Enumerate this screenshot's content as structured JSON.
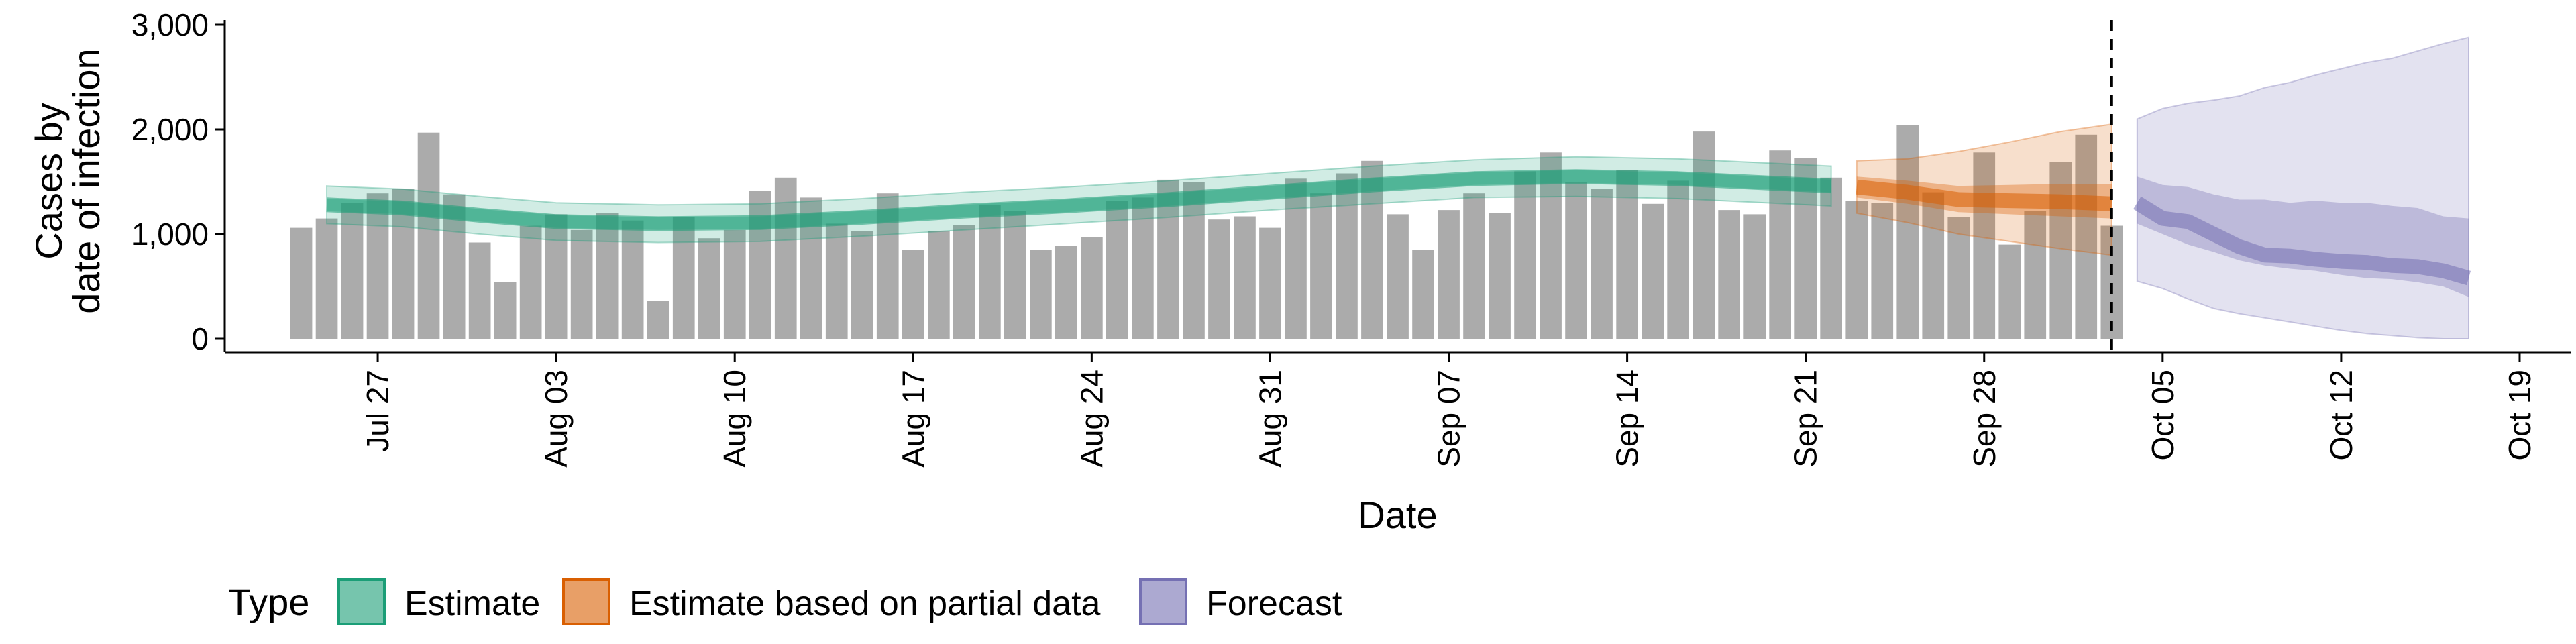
{
  "chart_data": {
    "type": "bar",
    "xlabel": "Date",
    "ylabel_lines": [
      "Cases by",
      "date of infection"
    ],
    "ylim": [
      0,
      3000
    ],
    "y_ticks": [
      0,
      1000,
      2000,
      3000
    ],
    "y_tick_labels": [
      "0",
      "1,000",
      "2,000",
      "3,000"
    ],
    "x_range": [
      "2020-07-21",
      "2020-10-21"
    ],
    "x_ticks": [
      "2020-07-27",
      "2020-08-03",
      "2020-08-10",
      "2020-08-17",
      "2020-08-24",
      "2020-08-31",
      "2020-09-07",
      "2020-09-14",
      "2020-09-21",
      "2020-09-28",
      "2020-10-05",
      "2020-10-12",
      "2020-10-19"
    ],
    "x_tick_labels": [
      "Jul 27",
      "Aug 03",
      "Aug 10",
      "Aug 17",
      "Aug 24",
      "Aug 31",
      "Sep 07",
      "Sep 14",
      "Sep 21",
      "Sep 28",
      "Oct 05",
      "Oct 12",
      "Oct 19"
    ],
    "grid": false,
    "legend_position": "bottom-left",
    "legend_title": "Type",
    "legend_items": [
      {
        "label": "Estimate",
        "color": "#1b9e77"
      },
      {
        "label": "Estimate based on partial data",
        "color": "#d95f02"
      },
      {
        "label": "Forecast",
        "color": "#7570b3"
      }
    ],
    "vline_date": "2020-10-03",
    "bar_color": "#a6a6a6",
    "bars": {
      "start_date": "2020-07-24",
      "values": [
        1060,
        1150,
        1300,
        1390,
        1430,
        1970,
        1380,
        920,
        540,
        1080,
        1190,
        1040,
        1200,
        1130,
        360,
        1160,
        960,
        1040,
        1410,
        1540,
        1350,
        1100,
        1030,
        1390,
        850,
        1030,
        1090,
        1280,
        1220,
        850,
        890,
        970,
        1320,
        1350,
        1520,
        1500,
        1140,
        1170,
        1060,
        1530,
        1390,
        1580,
        1700,
        1190,
        850,
        1230,
        1390,
        1200,
        1600,
        1780,
        1500,
        1430,
        1610,
        1290,
        1510,
        1980,
        1230,
        1190,
        1800,
        1730,
        1540,
        1320,
        1300,
        2040,
        1400,
        1160,
        1780,
        900,
        1220,
        1690,
        1950,
        1080
      ]
    },
    "series": [
      {
        "name": "Estimate",
        "color": "#1b9e77",
        "dates": [
          "2020-07-25",
          "2020-07-28",
          "2020-07-31",
          "2020-08-03",
          "2020-08-07",
          "2020-08-11",
          "2020-08-15",
          "2020-08-19",
          "2020-08-23",
          "2020-08-27",
          "2020-08-31",
          "2020-09-04",
          "2020-09-08",
          "2020-09-12",
          "2020-09-16",
          "2020-09-22"
        ],
        "median": [
          1280,
          1250,
          1180,
          1120,
          1100,
          1110,
          1160,
          1220,
          1270,
          1330,
          1400,
          1470,
          1530,
          1550,
          1530,
          1460
        ],
        "lower50": [
          1220,
          1190,
          1120,
          1060,
          1040,
          1050,
          1100,
          1160,
          1210,
          1270,
          1340,
          1410,
          1470,
          1490,
          1470,
          1400
        ],
        "upper50": [
          1340,
          1310,
          1240,
          1180,
          1160,
          1170,
          1220,
          1280,
          1330,
          1390,
          1460,
          1530,
          1590,
          1610,
          1590,
          1520
        ],
        "lower90": [
          1100,
          1070,
          1000,
          940,
          920,
          930,
          980,
          1040,
          1100,
          1160,
          1230,
          1290,
          1350,
          1360,
          1340,
          1270
        ],
        "upper90": [
          1460,
          1430,
          1360,
          1300,
          1280,
          1290,
          1340,
          1400,
          1450,
          1510,
          1580,
          1650,
          1710,
          1740,
          1720,
          1650
        ]
      },
      {
        "name": "Estimate based on partial data",
        "color": "#d95f02",
        "dates": [
          "2020-09-23",
          "2020-09-25",
          "2020-09-27",
          "2020-09-29",
          "2020-10-01",
          "2020-10-03"
        ],
        "median": [
          1450,
          1400,
          1330,
          1320,
          1310,
          1290
        ],
        "lower50": [
          1350,
          1290,
          1210,
          1190,
          1170,
          1150
        ],
        "upper50": [
          1550,
          1510,
          1460,
          1470,
          1480,
          1480
        ],
        "lower90": [
          1200,
          1110,
          1000,
          930,
          860,
          800
        ],
        "upper90": [
          1700,
          1720,
          1790,
          1880,
          1980,
          2050
        ]
      },
      {
        "name": "Forecast",
        "color": "#7570b3",
        "dates": [
          "2020-10-04",
          "2020-10-05",
          "2020-10-06",
          "2020-10-07",
          "2020-10-08",
          "2020-10-09",
          "2020-10-10",
          "2020-10-11",
          "2020-10-12",
          "2020-10-13",
          "2020-10-14",
          "2020-10-15",
          "2020-10-16",
          "2020-10-17"
        ],
        "median": [
          1300,
          1150,
          1120,
          1000,
          880,
          800,
          790,
          760,
          740,
          730,
          700,
          690,
          650,
          580
        ],
        "lower50": [
          1100,
          1000,
          900,
          830,
          750,
          700,
          670,
          650,
          610,
          580,
          570,
          540,
          500,
          400
        ],
        "upper50": [
          1550,
          1470,
          1450,
          1380,
          1330,
          1330,
          1300,
          1320,
          1300,
          1300,
          1270,
          1250,
          1170,
          1150
        ],
        "lower90": [
          550,
          480,
          380,
          290,
          240,
          200,
          160,
          120,
          80,
          50,
          30,
          10,
          0,
          0
        ],
        "upper90": [
          2100,
          2200,
          2250,
          2280,
          2320,
          2400,
          2450,
          2520,
          2580,
          2640,
          2680,
          2750,
          2820,
          2880
        ]
      }
    ]
  }
}
